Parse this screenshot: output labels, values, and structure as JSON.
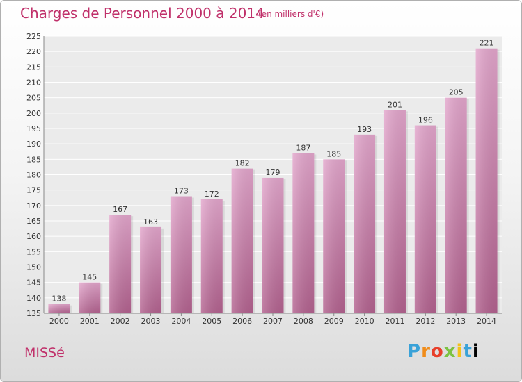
{
  "header": {
    "title": "Charges de Personnel 2000 à 2014",
    "subtitle": "(en milliers d'€)"
  },
  "footer": {
    "commune": "MISSé",
    "logo_letters": [
      "P",
      "r",
      "o",
      "x",
      "i",
      "t",
      "i"
    ]
  },
  "colors": {
    "title": "#c0306a",
    "bar_top": "#e3a6cc",
    "bar_bottom": "#b3628f"
  },
  "chart_data": {
    "type": "bar",
    "categories": [
      "2000",
      "2001",
      "2002",
      "2003",
      "2004",
      "2005",
      "2006",
      "2007",
      "2008",
      "2009",
      "2010",
      "2011",
      "2012",
      "2013",
      "2014"
    ],
    "values": [
      138,
      145,
      167,
      163,
      173,
      172,
      182,
      179,
      187,
      185,
      193,
      201,
      196,
      205,
      221
    ],
    "ylim": [
      135,
      225
    ],
    "yticks": [
      135,
      140,
      145,
      150,
      155,
      160,
      165,
      170,
      175,
      180,
      185,
      190,
      195,
      200,
      205,
      210,
      215,
      220,
      225
    ],
    "grid": true,
    "data_labels": true
  }
}
